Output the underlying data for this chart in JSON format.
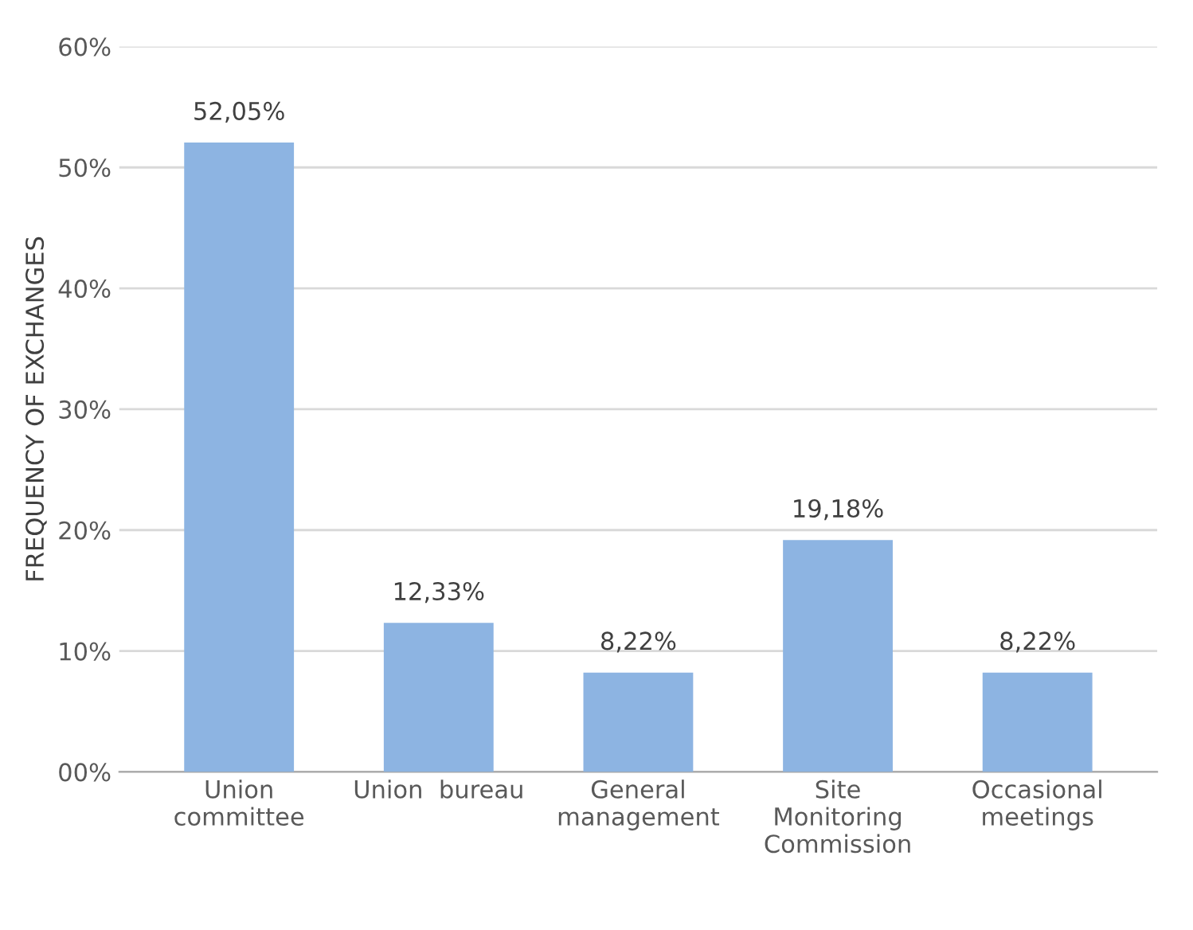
{
  "chart_data": {
    "type": "bar",
    "ylabel": "FREQUENCY OF EXCHANGES",
    "categories": [
      "Union\ncommittee",
      "Union  bureau",
      "General\nmanagement",
      "Site\nMonitoring\nCommission",
      "Occasional\nmeetings"
    ],
    "values": [
      52.05,
      12.33,
      8.22,
      19.18,
      8.22
    ],
    "value_labels": [
      "52,05%",
      "12,33%",
      "8,22%",
      "19,18%",
      "8,22%"
    ],
    "color": "#8db4e2",
    "ylim": [
      0,
      60
    ],
    "yticks": [
      {
        "value": 0,
        "label": "00%"
      },
      {
        "value": 10,
        "label": "10%"
      },
      {
        "value": 20,
        "label": "20%"
      },
      {
        "value": 30,
        "label": "30%"
      },
      {
        "value": 40,
        "label": "40%"
      },
      {
        "value": 50,
        "label": "50%"
      },
      {
        "value": 60,
        "label": "60%"
      }
    ],
    "grid": "y"
  }
}
